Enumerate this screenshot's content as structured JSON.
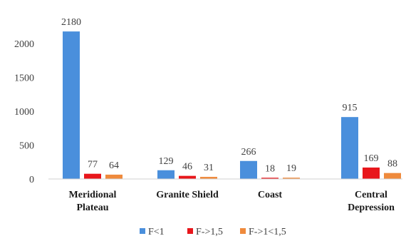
{
  "chart_data": {
    "type": "bar",
    "categories": [
      [
        "Meridional",
        "Plateau"
      ],
      [
        "Granite Shield"
      ],
      [
        "Coast"
      ],
      [
        "Central",
        "Depression"
      ]
    ],
    "series": [
      {
        "name": "F<1",
        "color": "#4a8fdc",
        "values": [
          2180,
          129,
          266,
          915
        ]
      },
      {
        "name": "F->1,5",
        "color": "#e8161b",
        "values": [
          77,
          46,
          18,
          169
        ]
      },
      {
        "name": "F->1<1,5",
        "color": "#ef8a3c",
        "values": [
          64,
          31,
          19,
          88
        ]
      }
    ],
    "yticks": [
      0,
      500,
      1000,
      1500,
      2000
    ],
    "ylim": [
      0,
      2180
    ],
    "grid": false,
    "legend_position": "bottom"
  }
}
